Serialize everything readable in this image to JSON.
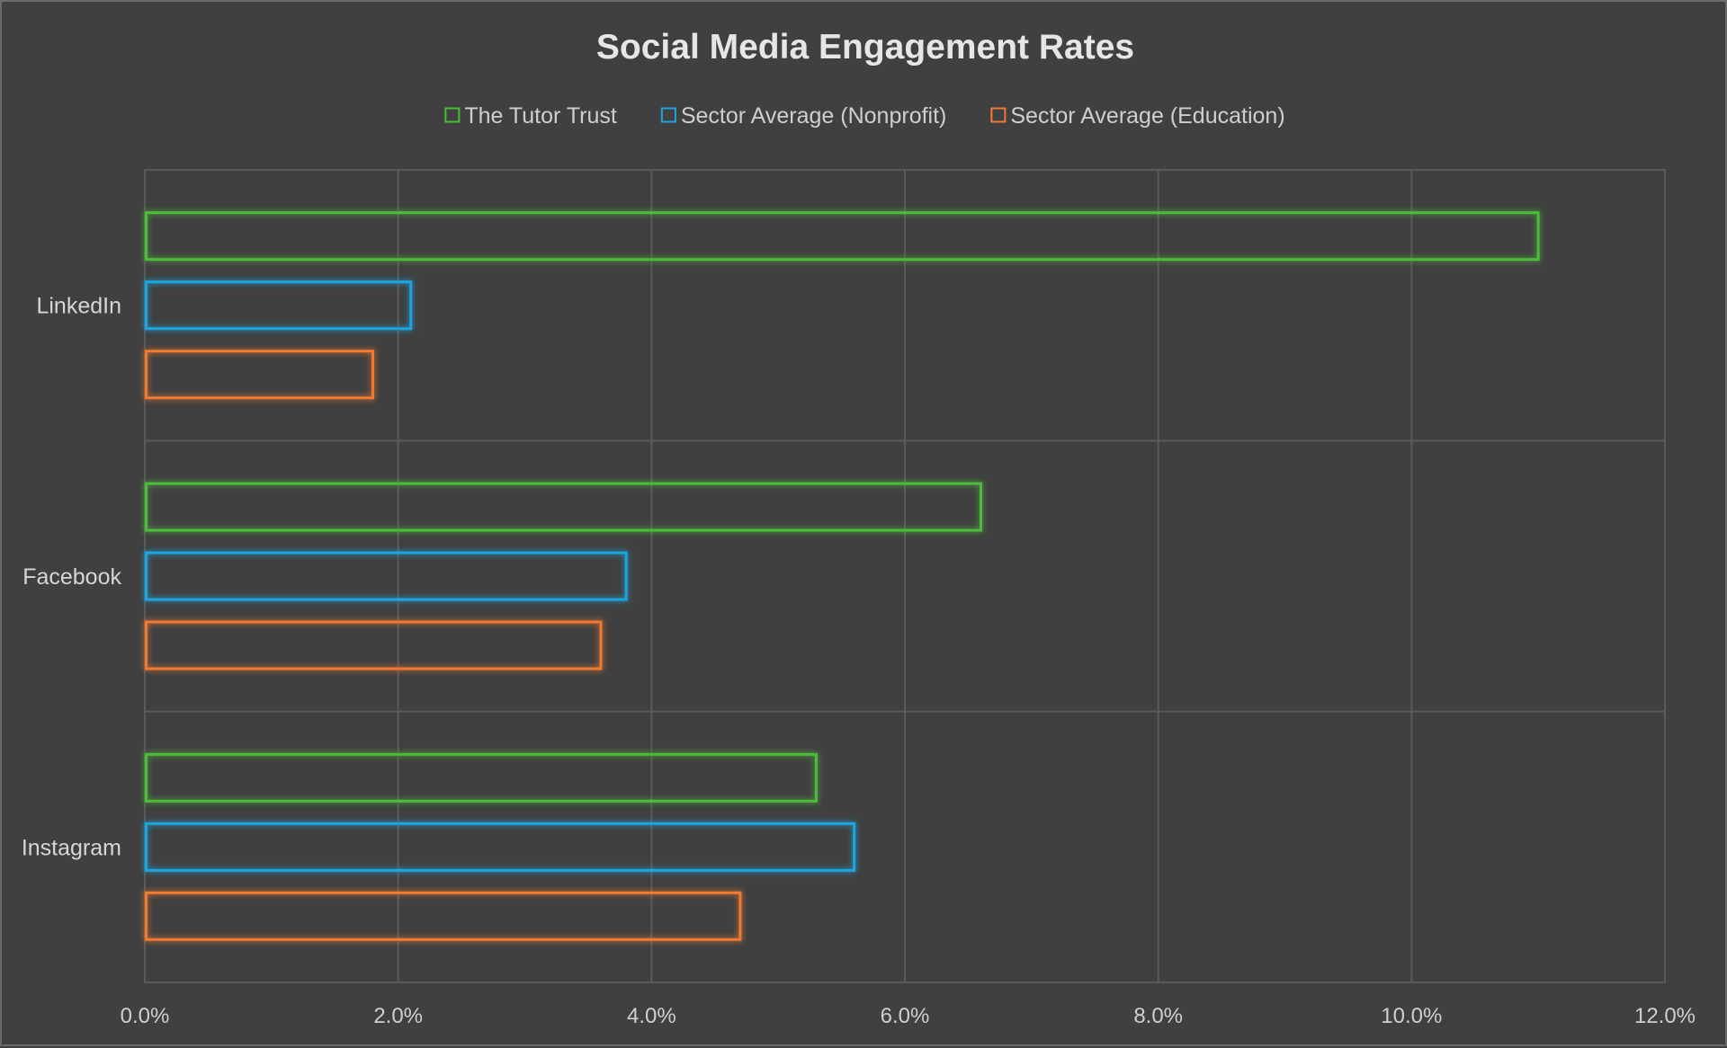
{
  "chart_data": {
    "type": "bar",
    "orientation": "horizontal",
    "title": "Social Media Engagement Rates",
    "categories": [
      "LinkedIn",
      "Facebook",
      "Instagram"
    ],
    "series": [
      {
        "name": "The Tutor Trust",
        "color": "#4dbb3a",
        "values": [
          11.0,
          6.6,
          5.3
        ]
      },
      {
        "name": "Sector Average (Nonprofit)",
        "color": "#1ea5de",
        "values": [
          2.1,
          3.8,
          5.6
        ]
      },
      {
        "name": "Sector Average (Education)",
        "color": "#f07a30",
        "values": [
          1.8,
          3.6,
          4.7
        ]
      }
    ],
    "xlim": [
      0,
      12
    ],
    "xticks": [
      0,
      2,
      4,
      6,
      8,
      10,
      12
    ],
    "xtick_labels": [
      "0.0%",
      "2.0%",
      "4.0%",
      "6.0%",
      "8.0%",
      "10.0%",
      "12.0%"
    ],
    "xlabel": "",
    "ylabel": "",
    "grid": true,
    "legend_position": "top",
    "bar_style": "outline with glow",
    "background_color": "#404040"
  }
}
